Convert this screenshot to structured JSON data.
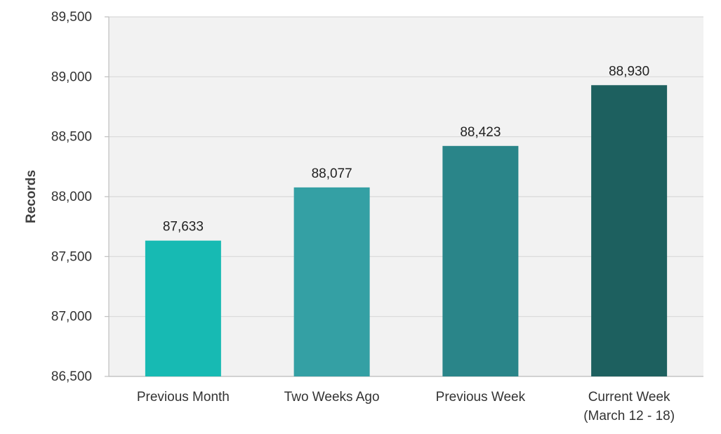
{
  "chart_data": {
    "type": "bar",
    "title": "",
    "xlabel": "",
    "ylabel": "Records",
    "ylim": [
      86500,
      89500
    ],
    "y_ticks": [
      86500,
      87000,
      87500,
      88000,
      88500,
      89000,
      89500
    ],
    "y_tick_labels": [
      "86,500",
      "87,000",
      "87,500",
      "88,000",
      "88,500",
      "89,000",
      "89,500"
    ],
    "grid": true,
    "categories": [
      [
        "Previous Month"
      ],
      [
        "Two Weeks Ago"
      ],
      [
        "Previous Week"
      ],
      [
        "Current Week",
        "(March 12 - 18)"
      ]
    ],
    "values": [
      87633,
      88077,
      88423,
      88930
    ],
    "data_labels": [
      "87,633",
      "88,077",
      "88,423",
      "88,930"
    ],
    "bar_colors": [
      "#17BAB3",
      "#34A0A4",
      "#2A8589",
      "#1D605F"
    ],
    "plot_background": "#F2F2F2",
    "gridline_color": "#D9D9D9"
  }
}
